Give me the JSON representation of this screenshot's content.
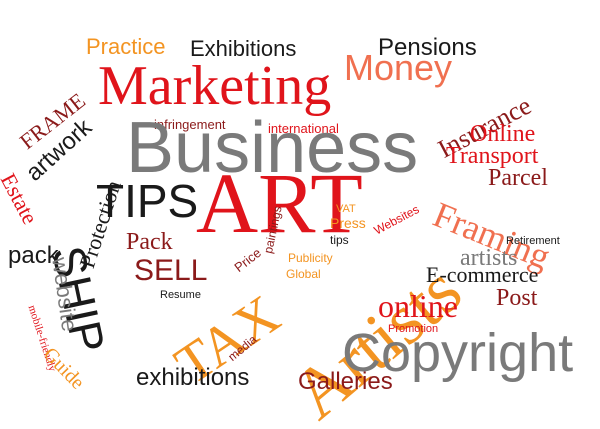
{
  "colors": {
    "red": "#e0141b",
    "dark_red": "#8b1a1a",
    "orange": "#f39422",
    "salmon": "#f07050",
    "gray": "#7a7a7a",
    "black": "#1a1a1a"
  },
  "words": [
    {
      "id": "practice",
      "text": "Practice"
    },
    {
      "id": "exhibitions_top",
      "text": "Exhibitions"
    },
    {
      "id": "pensions",
      "text": "Pensions"
    },
    {
      "id": "money",
      "text": "Money"
    },
    {
      "id": "marketing",
      "text": "Marketing"
    },
    {
      "id": "frame",
      "text": "FRAME"
    },
    {
      "id": "artwork",
      "text": "artwork"
    },
    {
      "id": "insurance",
      "text": "Insurance"
    },
    {
      "id": "infringement",
      "text": "infringement"
    },
    {
      "id": "international",
      "text": "international"
    },
    {
      "id": "online_top",
      "text": "Online"
    },
    {
      "id": "business",
      "text": "Business"
    },
    {
      "id": "transport",
      "text": "Transport"
    },
    {
      "id": "estate",
      "text": "Estate"
    },
    {
      "id": "protection",
      "text": "Protection"
    },
    {
      "id": "parcel",
      "text": "Parcel"
    },
    {
      "id": "framing",
      "text": "Framing"
    },
    {
      "id": "tips_big",
      "text": "TIPS"
    },
    {
      "id": "art",
      "text": "ART"
    },
    {
      "id": "paintings",
      "text": "paintings"
    },
    {
      "id": "vat",
      "text": "VAT"
    },
    {
      "id": "press",
      "text": "Press"
    },
    {
      "id": "tips_small",
      "text": "tips"
    },
    {
      "id": "websites",
      "text": "Websites"
    },
    {
      "id": "pack_small",
      "text": "pack"
    },
    {
      "id": "pack_big",
      "text": "Pack"
    },
    {
      "id": "sell",
      "text": "SELL"
    },
    {
      "id": "ship",
      "text": "SHIP"
    },
    {
      "id": "website",
      "text": "website"
    },
    {
      "id": "price",
      "text": "Price"
    },
    {
      "id": "publicity",
      "text": "Publicity"
    },
    {
      "id": "global",
      "text": "Global"
    },
    {
      "id": "artists_big",
      "text": "Artists"
    },
    {
      "id": "retirement",
      "text": "Retirement"
    },
    {
      "id": "artists_small",
      "text": "artists"
    },
    {
      "id": "ecommerce",
      "text": "E-commerce"
    },
    {
      "id": "tax",
      "text": "TAX"
    },
    {
      "id": "resume",
      "text": "Resume"
    },
    {
      "id": "online_mid",
      "text": "online"
    },
    {
      "id": "post",
      "text": "Post"
    },
    {
      "id": "mobile_friendly",
      "text": "mobile-friendly"
    },
    {
      "id": "promotion",
      "text": "Promotion"
    },
    {
      "id": "media",
      "text": "media"
    },
    {
      "id": "copyright",
      "text": "Copyright"
    },
    {
      "id": "guide",
      "text": "Guide"
    },
    {
      "id": "exhibitions_bottom",
      "text": "exhibitions"
    },
    {
      "id": "galleries",
      "text": "Galleries"
    }
  ]
}
